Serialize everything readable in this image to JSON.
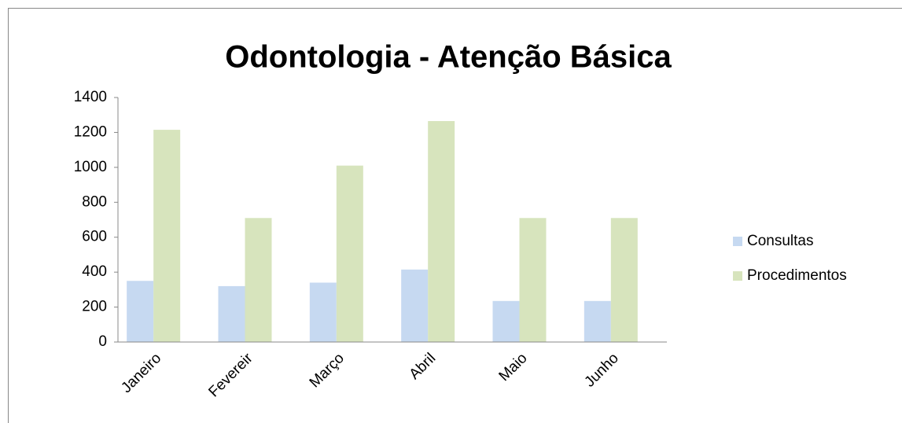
{
  "chart_data": {
    "type": "bar",
    "title": "Odontologia - Atenção Básica",
    "categories": [
      "Janeiro",
      "Fevereir",
      "Março",
      "Abril",
      "Maio",
      "Junho"
    ],
    "series": [
      {
        "name": "Consultas",
        "color": "#c6d9f1",
        "values": [
          350,
          320,
          340,
          415,
          235,
          235
        ]
      },
      {
        "name": "Procedimentos",
        "color": "#d7e4bd",
        "values": [
          1215,
          710,
          1010,
          1265,
          710,
          710
        ]
      }
    ],
    "ylim": [
      0,
      1400
    ],
    "yticks": [
      0,
      200,
      400,
      600,
      800,
      1000,
      1200,
      1400
    ],
    "grid": false,
    "legend": "right"
  }
}
